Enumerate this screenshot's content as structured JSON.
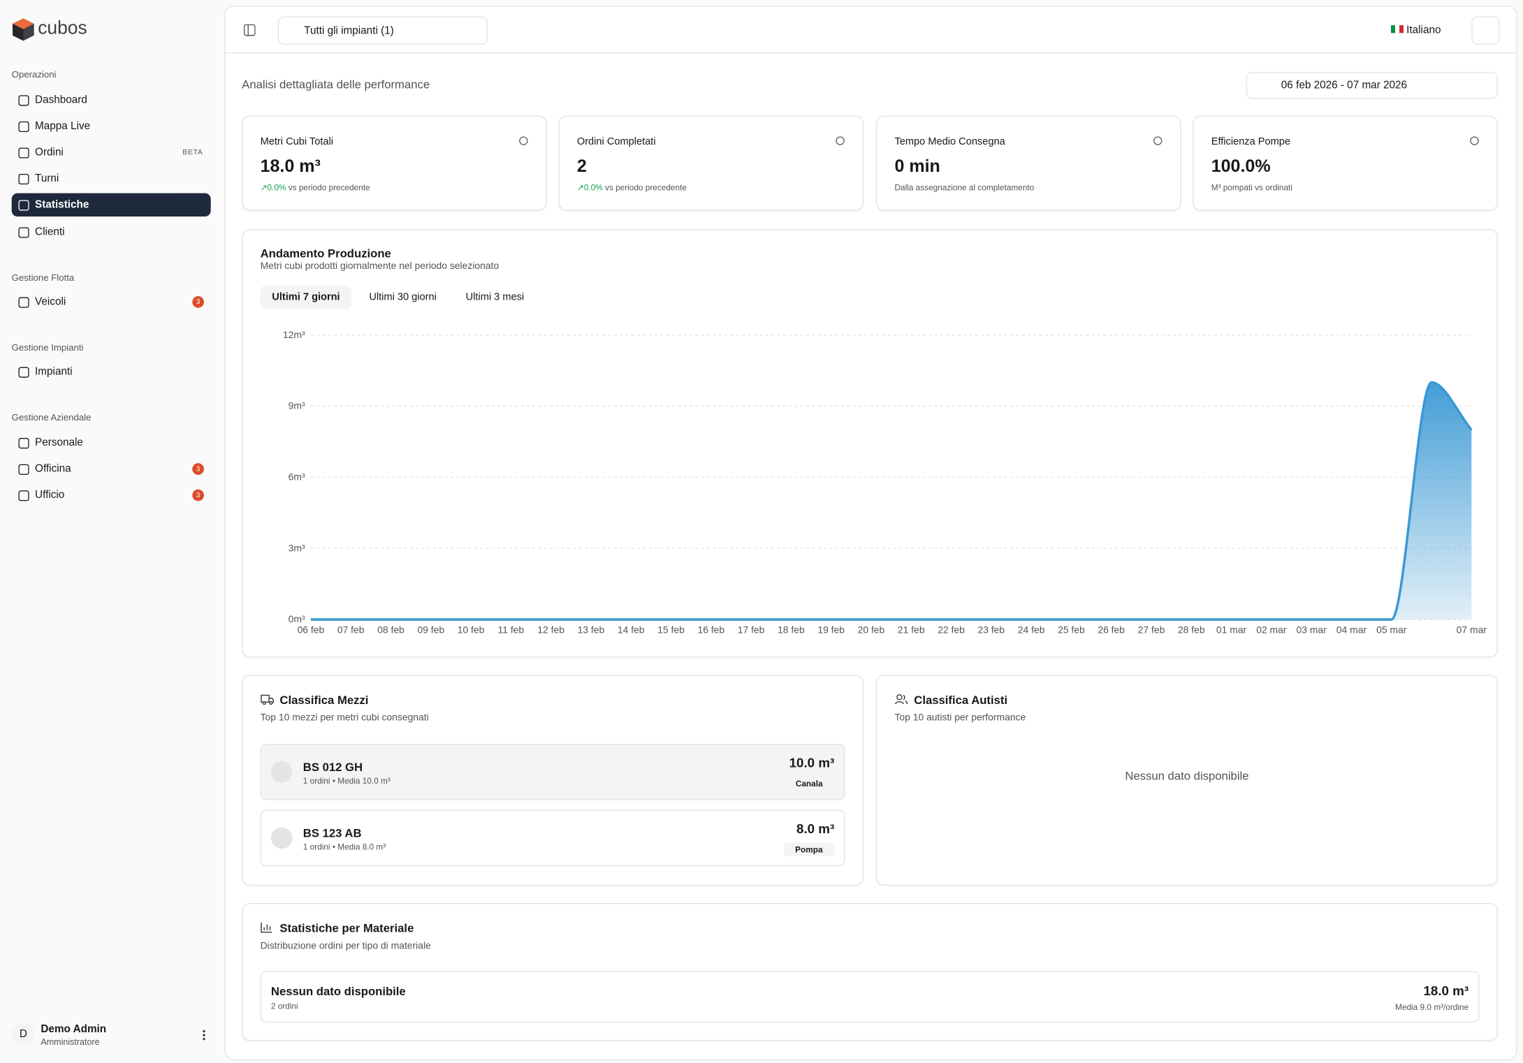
{
  "sidebar": {
    "brand": "cubos",
    "sections": [
      {
        "title": "Operazioni",
        "items": [
          {
            "label": "Dashboard"
          },
          {
            "label": "Mappa Live"
          },
          {
            "label": "Ordini",
            "badge": "BETA"
          },
          {
            "label": "Turni"
          },
          {
            "label": "Statistiche",
            "active": true
          },
          {
            "label": "Clienti"
          }
        ]
      },
      {
        "title": "Gestione Flotta",
        "items": [
          {
            "label": "Veicoli",
            "badge": "3"
          }
        ]
      },
      {
        "title": "Gestione Impianti",
        "items": [
          {
            "label": "Impianti"
          }
        ]
      },
      {
        "title": "Gestione Aziendale",
        "items": [
          {
            "label": "Personale"
          },
          {
            "label": "Officina",
            "badge": "3"
          },
          {
            "label": "Ufficio",
            "badge": "3"
          }
        ]
      }
    ],
    "user": {
      "initial": "D",
      "name": "Demo Admin",
      "role": "Amministratore"
    }
  },
  "header": {
    "plant_selector": "Tutti gli impianti (1)",
    "language": "Italiano"
  },
  "page": {
    "subtitle": "Analisi dettagliata delle performance",
    "date_range": "06 feb 2026 - 07 mar 2026"
  },
  "kpis": [
    {
      "title": "Metri Cubi Totali",
      "value": "18.0 m³",
      "change": "0.0%",
      "note": "vs periodo precedente"
    },
    {
      "title": "Ordini Completati",
      "value": "2",
      "change": "0.0%",
      "note": "vs periodo precedente"
    },
    {
      "title": "Tempo Medio Consegna",
      "value": "0 min",
      "note": "Dalla assegnazione al completamento"
    },
    {
      "title": "Efficienza Pompe",
      "value": "100.0%",
      "note": "M³ pompati vs ordinati"
    }
  ],
  "chart_data": {
    "type": "area",
    "title": "Andamento Produzione",
    "subtitle": "Metri cubi prodotti giornalmente nel periodo selezionato",
    "tabs": [
      "Ultimi 7 giorni",
      "Ultimi 30 giorni",
      "Ultimi 3 mesi"
    ],
    "categories": [
      "06 feb",
      "07 feb",
      "08 feb",
      "09 feb",
      "10 feb",
      "11 feb",
      "12 feb",
      "13 feb",
      "14 feb",
      "15 feb",
      "16 feb",
      "17 feb",
      "18 feb",
      "19 feb",
      "20 feb",
      "21 feb",
      "22 feb",
      "23 feb",
      "24 feb",
      "25 feb",
      "26 feb",
      "27 feb",
      "28 feb",
      "01 mar",
      "02 mar",
      "03 mar",
      "04 mar",
      "05 mar",
      null,
      "07 mar"
    ],
    "values": [
      0,
      0,
      0,
      0,
      0,
      0,
      0,
      0,
      0,
      0,
      0,
      0,
      0,
      0,
      0,
      0,
      0,
      0,
      0,
      0,
      0,
      0,
      0,
      0,
      0,
      0,
      0,
      0,
      10,
      8
    ],
    "color": "#3a98d4",
    "ylim": [
      0,
      12
    ],
    "yticks": [
      {
        "value": 0,
        "label": "0m³"
      },
      {
        "value": 3,
        "label": "3m³"
      },
      {
        "value": 6,
        "label": "6m³"
      },
      {
        "value": 9,
        "label": "9m³"
      },
      {
        "value": 12,
        "label": "12m³"
      }
    ],
    "grid": true
  },
  "vehicles": {
    "title": "Classifica Mezzi",
    "subtitle": "Top 10 mezzi per metri cubi consegnati",
    "rows": [
      {
        "plate": "BS 012 GH",
        "detail": "1 ordini • Media 10.0 m³",
        "volume": "10.0 m³",
        "type": "Canala"
      },
      {
        "plate": "BS 123 AB",
        "detail": "1 ordini • Media 8.0 m³",
        "volume": "8.0 m³",
        "type": "Pompa"
      }
    ]
  },
  "drivers": {
    "title": "Classifica Autisti",
    "subtitle": "Top 10 autisti per performance",
    "empty": "Nessun dato disponibile"
  },
  "materials": {
    "title": "Statistiche per Materiale",
    "subtitle": "Distribuzione ordini per tipo di materiale",
    "rows": [
      {
        "name": "Nessun dato disponibile",
        "orders": "2 ordini",
        "volume": "18.0 m³",
        "average": "Media 9.0 m³/ordine"
      }
    ]
  }
}
